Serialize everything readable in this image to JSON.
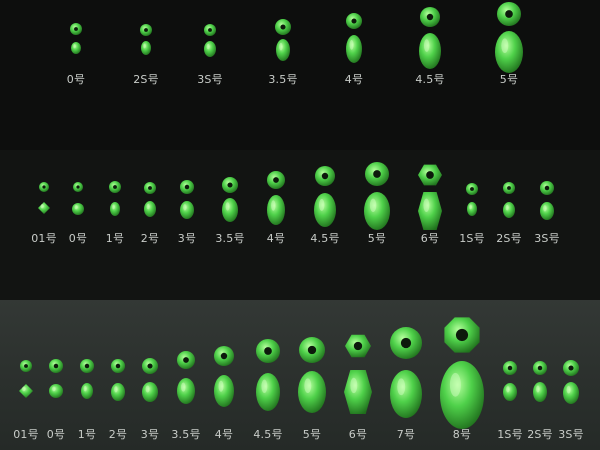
{
  "colors": {
    "bead": "#4fd14a",
    "bead_dark": "#1f6e1c",
    "bead_light": "#b6ff9e",
    "label": "#c9cdc9"
  },
  "rows": [
    {
      "name": "row-1",
      "beads": [
        {
          "label": "0号"
        },
        {
          "label": "2S号"
        },
        {
          "label": "3S号"
        },
        {
          "label": "3.5号"
        },
        {
          "label": "4号"
        },
        {
          "label": "4.5号"
        },
        {
          "label": "5号"
        }
      ]
    },
    {
      "name": "row-2",
      "beads": [
        {
          "label": "01号"
        },
        {
          "label": "0号"
        },
        {
          "label": "1号"
        },
        {
          "label": "2号"
        },
        {
          "label": "3号"
        },
        {
          "label": "3.5号"
        },
        {
          "label": "4号"
        },
        {
          "label": "4.5号"
        },
        {
          "label": "5号"
        },
        {
          "label": "6号"
        },
        {
          "label": "1S号"
        },
        {
          "label": "2S号"
        },
        {
          "label": "3S号"
        }
      ]
    },
    {
      "name": "row-3",
      "beads": [
        {
          "label": "01号"
        },
        {
          "label": "0号"
        },
        {
          "label": "1号"
        },
        {
          "label": "2号"
        },
        {
          "label": "3号"
        },
        {
          "label": "3.5号"
        },
        {
          "label": "4号"
        },
        {
          "label": "4.5号"
        },
        {
          "label": "5号"
        },
        {
          "label": "6号"
        },
        {
          "label": "7号"
        },
        {
          "label": "8号"
        },
        {
          "label": "1S号"
        },
        {
          "label": "2S号"
        },
        {
          "label": "3S号"
        }
      ]
    }
  ]
}
